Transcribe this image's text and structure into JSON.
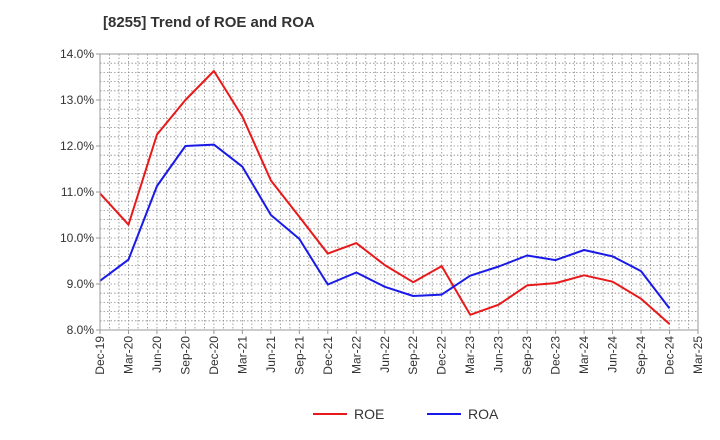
{
  "chart_data": {
    "type": "line",
    "title": "[8255]  Trend of ROE and ROA",
    "xlabel": "",
    "ylabel": "",
    "categories": [
      "Dec-19",
      "Mar-20",
      "Jun-20",
      "Sep-20",
      "Dec-20",
      "Mar-21",
      "Jun-21",
      "Sep-21",
      "Dec-21",
      "Mar-22",
      "Jun-22",
      "Sep-22",
      "Dec-22",
      "Mar-23",
      "Jun-23",
      "Sep-23",
      "Dec-23",
      "Mar-24",
      "Jun-24",
      "Sep-24",
      "Dec-24",
      "Mar-25"
    ],
    "ylim": [
      8.0,
      14.0
    ],
    "yticks": [
      "8.0%",
      "9.0%",
      "10.0%",
      "11.0%",
      "12.0%",
      "13.0%",
      "14.0%"
    ],
    "grid": "dotted vertical and horizontal",
    "legend_position": "bottom-center",
    "series": [
      {
        "name": "ROE",
        "color": "#e8191a",
        "values": [
          10.97,
          10.29,
          12.25,
          13.0,
          13.63,
          12.64,
          11.25,
          10.46,
          9.66,
          9.89,
          9.41,
          9.04,
          9.39,
          8.33,
          8.55,
          8.97,
          9.02,
          9.19,
          9.05,
          8.68,
          8.13,
          null
        ]
      },
      {
        "name": "ROA",
        "color": "#1a1ae8",
        "values": [
          9.07,
          9.53,
          11.13,
          12.0,
          12.03,
          11.55,
          10.5,
          9.98,
          8.99,
          9.25,
          8.94,
          8.74,
          8.77,
          9.18,
          9.38,
          9.62,
          9.52,
          9.74,
          9.6,
          9.28,
          8.47,
          null
        ]
      }
    ]
  }
}
